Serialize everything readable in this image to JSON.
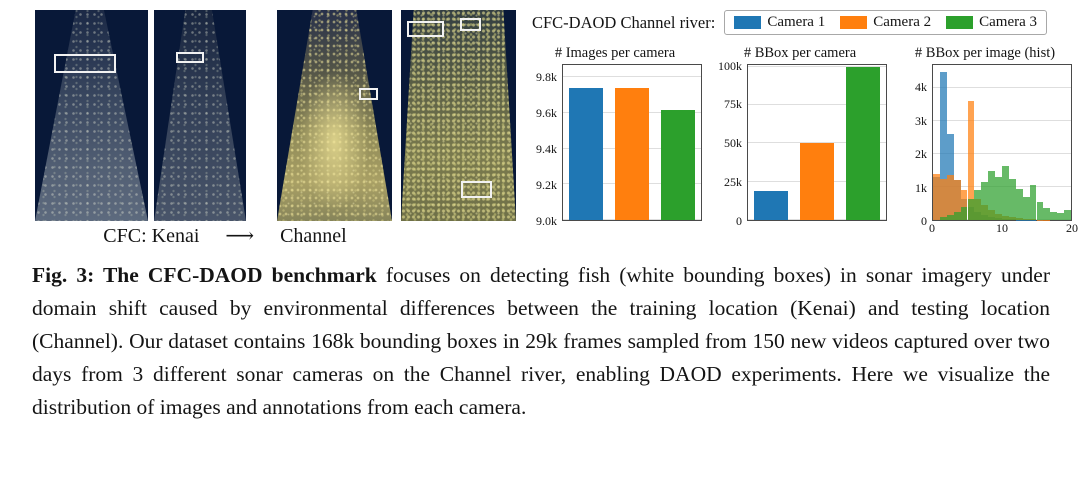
{
  "sonar": {
    "label_left": "CFC: Kenai",
    "arrow": "⟶",
    "label_right": "Channel"
  },
  "legend": {
    "title": "CFC-DAOD Channel river:",
    "entries": [
      {
        "label": "Camera 1",
        "color": "#1f77b4"
      },
      {
        "label": "Camera 2",
        "color": "#ff7f0e"
      },
      {
        "label": "Camera 3",
        "color": "#2ca02c"
      }
    ]
  },
  "chart_data": [
    {
      "type": "bar",
      "title": "# Images per camera",
      "categories": [
        "Camera 1",
        "Camera 2",
        "Camera 3"
      ],
      "values": [
        9740,
        9740,
        9620
      ],
      "colors": [
        "#1f77b4",
        "#ff7f0e",
        "#2ca02c"
      ],
      "ylim": [
        9000,
        9870
      ],
      "yticks": [
        9000,
        9200,
        9400,
        9600,
        9800
      ],
      "ytick_labels": [
        "9.0k",
        "9.2k",
        "9.4k",
        "9.6k",
        "9.8k"
      ],
      "grid": true,
      "legend_position": "none"
    },
    {
      "type": "bar",
      "title": "# BBox per camera",
      "categories": [
        "Camera 1",
        "Camera 2",
        "Camera 3"
      ],
      "values": [
        19000,
        50000,
        100000
      ],
      "colors": [
        "#1f77b4",
        "#ff7f0e",
        "#2ca02c"
      ],
      "ylim": [
        0,
        101000
      ],
      "yticks": [
        0,
        25000,
        50000,
        75000,
        100000
      ],
      "ytick_labels": [
        "0",
        "25k",
        "50k",
        "75k",
        "100k"
      ],
      "grid": true,
      "legend_position": "none"
    },
    {
      "type": "histogram",
      "title": "# BBox per image (hist)",
      "xlim": [
        0,
        20
      ],
      "bin_width": 1,
      "xticks": [
        0,
        10,
        20
      ],
      "xtick_labels": [
        "0",
        "10",
        "20"
      ],
      "ylim": [
        0,
        4700
      ],
      "yticks": [
        0,
        1000,
        2000,
        3000,
        4000
      ],
      "ytick_labels": [
        "0",
        "1k",
        "2k",
        "3k",
        "4k"
      ],
      "grid": true,
      "legend_position": "none",
      "series": [
        {
          "name": "Camera 1",
          "color": "#1f77b4",
          "values": [
            1300,
            4500,
            2600,
            1200,
            650,
            400,
            250,
            150,
            90,
            60,
            40,
            25,
            15,
            10,
            5,
            5,
            0,
            0,
            0,
            0
          ]
        },
        {
          "name": "Camera 2",
          "color": "#ff7f0e",
          "values": [
            1400,
            1250,
            1350,
            1200,
            900,
            3600,
            650,
            450,
            300,
            180,
            120,
            80,
            50,
            30,
            20,
            10,
            5,
            0,
            0,
            0
          ]
        },
        {
          "name": "Camera 3",
          "color": "#2ca02c",
          "values": [
            0,
            100,
            150,
            250,
            400,
            650,
            900,
            1150,
            1500,
            1300,
            1650,
            1250,
            950,
            700,
            1050,
            550,
            350,
            250,
            200,
            300
          ]
        }
      ]
    }
  ],
  "caption": {
    "bold": "Fig. 3: The CFC-DAOD benchmark",
    "text": " focuses on detecting fish (white bounding boxes) in sonar imagery under domain shift caused by environmental differences between the training location (Kenai) and testing location (Channel). Our dataset contains 168k bounding boxes in 29k frames sampled from 150 new videos captured over two days from 3 different sonar cameras on the Channel river, enabling DAOD experiments. Here we visualize the distribution of images and annotations from each camera."
  }
}
